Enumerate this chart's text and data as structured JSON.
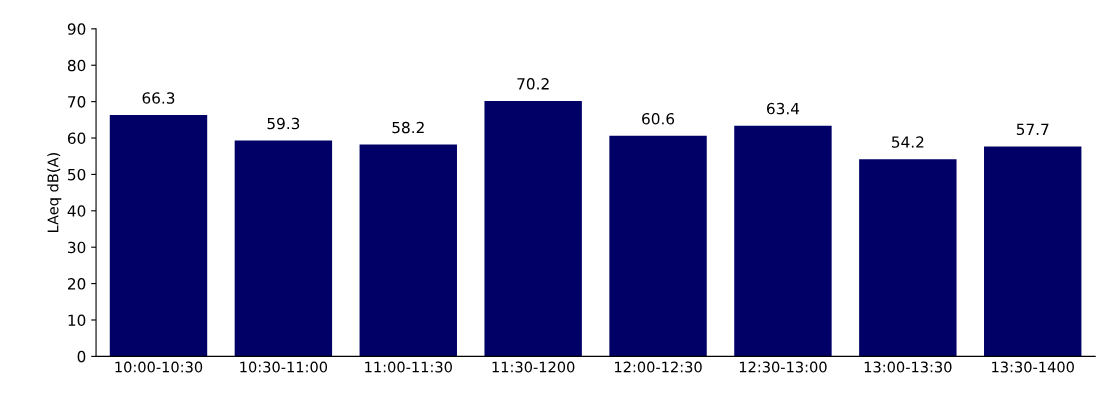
{
  "chart_data": {
    "type": "bar",
    "ylabel": "LAeq dB(A)",
    "categories": [
      "10:00-10:30",
      "10:30-11:00",
      "11:00-11:30",
      "11:30-1200",
      "12:00-12:30",
      "12:30-13:00",
      "13:00-13:30",
      "13:30-1400"
    ],
    "values": [
      66.3,
      59.3,
      58.2,
      70.2,
      60.6,
      63.4,
      54.2,
      57.7
    ],
    "color": "#000066",
    "ylim": [
      0,
      90
    ],
    "yticks": [
      0,
      10,
      20,
      30,
      40,
      50,
      60,
      70,
      80,
      90
    ],
    "data_labels": true,
    "grid": false
  }
}
